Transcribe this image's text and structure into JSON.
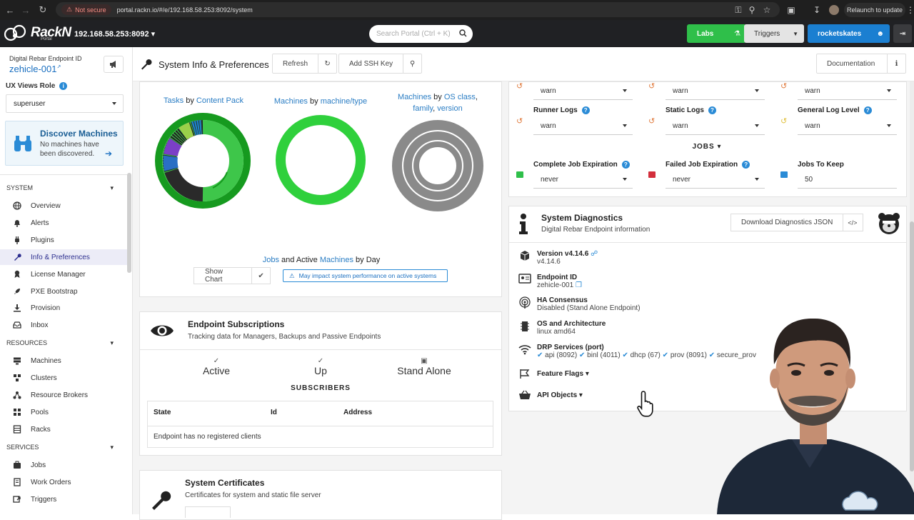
{
  "browser": {
    "not_secure": "Not secure",
    "url": "portal.rackn.io/#/e/192.168.58.253:8092/system",
    "relaunch": "Relaunch to update"
  },
  "header": {
    "logo_text": "RackN",
    "logo_sub": "Portal",
    "endpoint": "192.168.58.253:8092",
    "search_placeholder": "Search Portal (Ctrl + K)",
    "labs": "Labs",
    "triggers": "Triggers",
    "user": "rocketskates",
    "colors": {
      "labs": "#2fbf4a",
      "user": "#1b7fd1",
      "triggers": "#e4e4e4"
    }
  },
  "sidebar": {
    "endpoint_label": "Digital Rebar Endpoint ID",
    "endpoint_id": "zehicle-001",
    "ux_label": "UX Views Role",
    "ux_value": "superuser",
    "discover_title": "Discover Machines",
    "discover_text": "No machines have been discovered.",
    "sections": {
      "system": "SYSTEM",
      "resources": "RESOURCES",
      "services": "SERVICES"
    },
    "system_items": [
      "Overview",
      "Alerts",
      "Plugins",
      "Info & Preferences",
      "License Manager",
      "PXE Bootstrap",
      "Provision",
      "Inbox"
    ],
    "resource_items": [
      "Machines",
      "Clusters",
      "Resource Brokers",
      "Pools",
      "Racks"
    ],
    "service_items": [
      "Jobs",
      "Work Orders",
      "Triggers"
    ]
  },
  "titlebar": {
    "title": "System Info & Preferences",
    "refresh": "Refresh",
    "add_ssh": "Add SSH Key",
    "documentation": "Documentation"
  },
  "charts": {
    "tasks_a": "Tasks",
    "tasks_by": "by",
    "tasks_b": "Content Pack",
    "machines_a": "Machines",
    "machines_by": "by",
    "machines_b": "machine/type",
    "os_a": "Machines",
    "os_by": "by",
    "os_b": "OS",
    "os_c": "class",
    "os_d": "family",
    "os_e": "version",
    "jobs_a": "Jobs",
    "jobs_b": "and Active",
    "jobs_c": "Machines",
    "jobs_d": "by Day",
    "show_chart": "Show Chart",
    "warning": "May impact system performance on active systems"
  },
  "subscriptions": {
    "title": "Endpoint Subscriptions",
    "subtitle": "Tracking data for Managers, Backups and Passive Endpoints",
    "active": "Active",
    "up": "Up",
    "standalone": "Stand Alone",
    "subscribers": "SUBSCRIBERS",
    "col_state": "State",
    "col_id": "Id",
    "col_address": "Address",
    "empty": "Endpoint has no registered clients"
  },
  "certificates": {
    "title": "System Certificates",
    "subtitle": "Certificates for system and static file server"
  },
  "logs": {
    "top_values": [
      "warn",
      "warn",
      "warn"
    ],
    "runner_label": "Runner Logs",
    "runner_value": "warn",
    "static_label": "Static Logs",
    "static_value": "warn",
    "general_label": "General Log Level",
    "general_value": "warn"
  },
  "jobs": {
    "section": "JOBS",
    "complete_label": "Complete Job Expiration",
    "complete_value": "never",
    "failed_label": "Failed Job Expiration",
    "failed_value": "never",
    "keep_label": "Jobs To Keep",
    "keep_value": "50"
  },
  "diagnostics": {
    "title": "System Diagnostics",
    "subtitle": "Digital Rebar Endpoint information",
    "download": "Download Diagnostics JSON",
    "version_label": "Version v4.14.6",
    "version_value": "v4.14.6",
    "endpoint_label": "Endpoint ID",
    "endpoint_value": "zehicle-001",
    "ha_label": "HA Consensus",
    "ha_value": "Disabled (Stand Alone Endpoint)",
    "os_label": "OS and Architecture",
    "os_value": "linux amd64",
    "drp_label": "DRP Services (port)",
    "services": [
      "api (8092)",
      "binl (4011)",
      "dhcp (67)",
      "prov (8091)",
      "secure_prov"
    ],
    "feature_flags": "Feature Flags",
    "api_objects": "API Objects"
  }
}
